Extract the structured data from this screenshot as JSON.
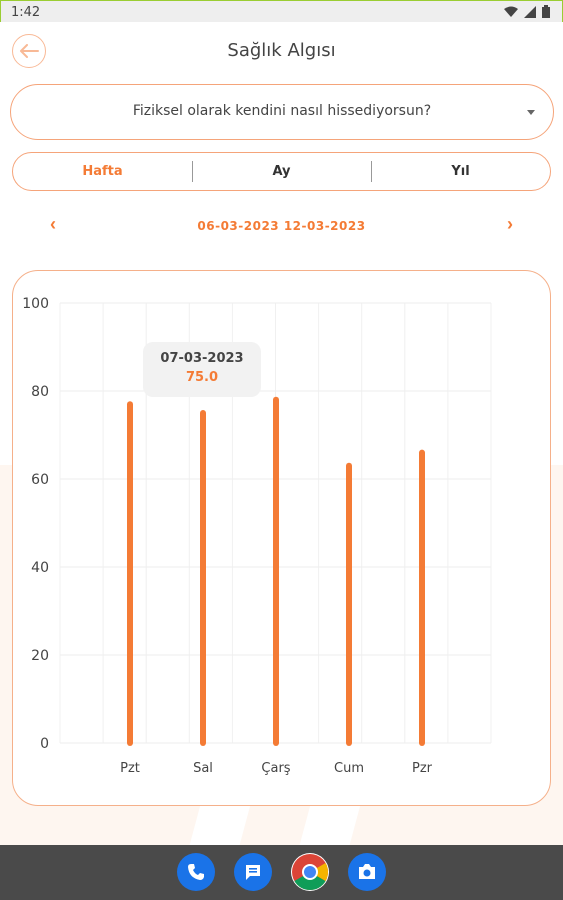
{
  "status_bar": {
    "time": "1:42",
    "icons": [
      "wifi-icon",
      "signal-icon",
      "battery-icon"
    ]
  },
  "app_bar": {
    "title": "Sağlık Algısı",
    "back_icon": "arrow-left-icon"
  },
  "question": {
    "selected": "Fiziksel olarak kendini nasıl hissediyorsun?"
  },
  "period_tabs": [
    {
      "label": "Hafta",
      "active": true
    },
    {
      "label": "Ay",
      "active": false
    },
    {
      "label": "Yıl",
      "active": false
    }
  ],
  "date_range": {
    "prev": "‹",
    "text": "06-03-2023 12-03-2023",
    "next": "›"
  },
  "tooltip": {
    "date": "07-03-2023",
    "value": "75.0"
  },
  "colors": {
    "accent": "#f47b35",
    "border": "#f5a47a",
    "grid": "#eeeeee"
  },
  "chart_data": {
    "type": "bar",
    "categories": [
      "Pzt",
      "Sal",
      "Çarş",
      "Cum",
      "Pzr"
    ],
    "values": [
      77,
      75,
      78,
      63,
      66
    ],
    "title": "",
    "xlabel": "",
    "ylabel": "",
    "ylim": [
      0,
      100
    ],
    "yticks": [
      0,
      20,
      40,
      60,
      80,
      100
    ],
    "grid": true,
    "color": "#f47b35"
  },
  "nav_apps": [
    "phone-icon",
    "messages-icon",
    "chrome-icon",
    "camera-icon"
  ]
}
